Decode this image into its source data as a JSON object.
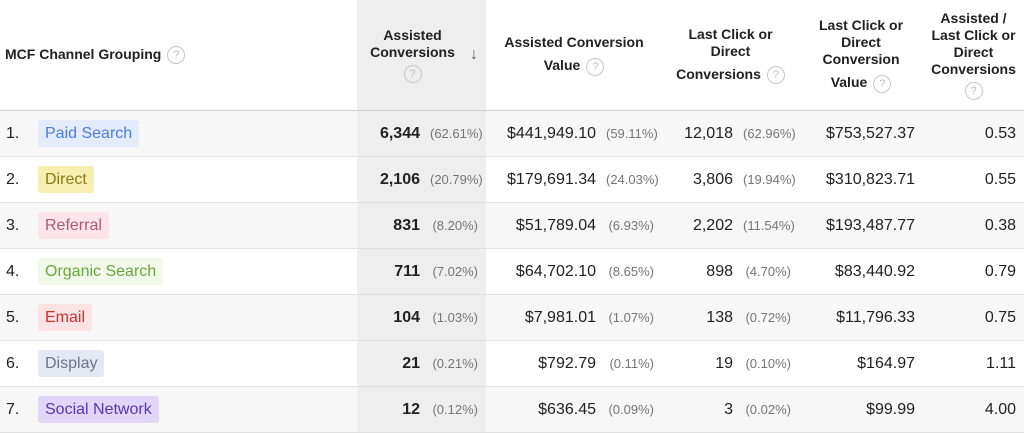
{
  "headers": {
    "channel": "MCF Channel Grouping",
    "assisted_conversions": [
      "Assisted",
      "Conversions"
    ],
    "assisted_value": [
      "Assisted Conversion",
      "Value"
    ],
    "last_click_conversions": [
      "Last Click or",
      "Direct",
      "Conversions"
    ],
    "last_click_value": [
      "Last Click or",
      "Direct",
      "Conversion",
      "Value"
    ],
    "ratio": [
      "Assisted /",
      "Last Click or",
      "Direct",
      "Conversions"
    ],
    "help_glyph": "?",
    "sort_glyph": "↓"
  },
  "colors": {
    "Paid Search": {
      "bg": "#e3ebfc",
      "fg": "#4a7fe0"
    },
    "Direct": {
      "bg": "#f7efb2",
      "fg": "#8a7a12"
    },
    "Referral": {
      "bg": "#fbe4ea",
      "fg": "#b05b73"
    },
    "Organic Search": {
      "bg": "#f1f9e8",
      "fg": "#6aa63d"
    },
    "Email": {
      "bg": "#fde3e3",
      "fg": "#d32f2f"
    },
    "Display": {
      "bg": "#e3e8f2",
      "fg": "#6b7689"
    },
    "Social Network": {
      "bg": "#e2d6f8",
      "fg": "#5a35b6"
    }
  },
  "rows": [
    {
      "idx": "1.",
      "channel": "Paid Search",
      "ac": "6,344",
      "ac_pct": "(62.61%)",
      "av": "$441,949.10",
      "av_pct": "(59.11%)",
      "lc": "12,018",
      "lc_pct": "(62.96%)",
      "lv": "$753,527.37",
      "ratio": "0.53"
    },
    {
      "idx": "2.",
      "channel": "Direct",
      "ac": "2,106",
      "ac_pct": "(20.79%)",
      "av": "$179,691.34",
      "av_pct": "(24.03%)",
      "lc": "3,806",
      "lc_pct": "(19.94%)",
      "lv": "$310,823.71",
      "ratio": "0.55"
    },
    {
      "idx": "3.",
      "channel": "Referral",
      "ac": "831",
      "ac_pct": "(8.20%)",
      "av": "$51,789.04",
      "av_pct": "(6.93%)",
      "lc": "2,202",
      "lc_pct": "(11.54%)",
      "lv": "$193,487.77",
      "ratio": "0.38"
    },
    {
      "idx": "4.",
      "channel": "Organic Search",
      "ac": "711",
      "ac_pct": "(7.02%)",
      "av": "$64,702.10",
      "av_pct": "(8.65%)",
      "lc": "898",
      "lc_pct": "(4.70%)",
      "lv": "$83,440.92",
      "ratio": "0.79"
    },
    {
      "idx": "5.",
      "channel": "Email",
      "ac": "104",
      "ac_pct": "(1.03%)",
      "av": "$7,981.01",
      "av_pct": "(1.07%)",
      "lc": "138",
      "lc_pct": "(0.72%)",
      "lv": "$11,796.33",
      "ratio": "0.75"
    },
    {
      "idx": "6.",
      "channel": "Display",
      "ac": "21",
      "ac_pct": "(0.21%)",
      "av": "$792.79",
      "av_pct": "(0.11%)",
      "lc": "19",
      "lc_pct": "(0.10%)",
      "lv": "$164.97",
      "ratio": "1.11"
    },
    {
      "idx": "7.",
      "channel": "Social Network",
      "ac": "12",
      "ac_pct": "(0.12%)",
      "av": "$636.45",
      "av_pct": "(0.09%)",
      "lc": "3",
      "lc_pct": "(0.02%)",
      "lv": "$99.99",
      "ratio": "4.00"
    }
  ]
}
